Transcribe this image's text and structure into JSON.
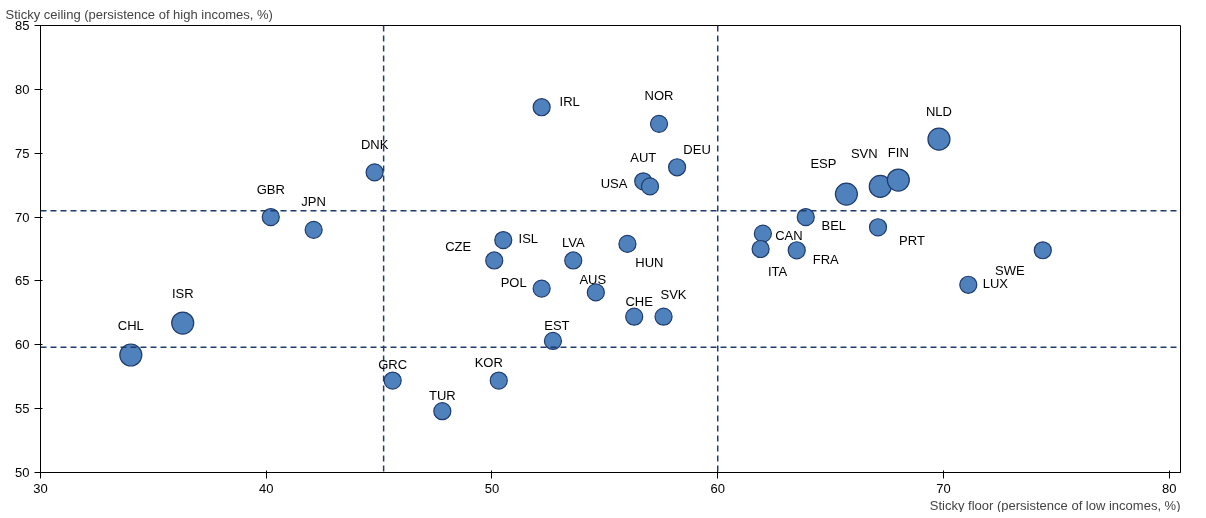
{
  "chart_data": {
    "type": "bubble",
    "xlabel": "Sticky floor (persistence of low incomes, %)",
    "ylabel": "Sticky ceiling (persistence of high incomes, %)",
    "xlim": [
      30,
      80.5
    ],
    "ylim": [
      50,
      85
    ],
    "xticks": [
      30,
      40,
      50,
      60,
      70,
      80
    ],
    "yticks": [
      50,
      55,
      60,
      65,
      70,
      75,
      80,
      85
    ],
    "grid": false,
    "marker": "circle",
    "series": [
      {
        "color": "#4f81bd",
        "x": [
          34.0,
          36.3,
          45.6,
          47.8,
          50.3,
          40.2,
          42.1,
          44.8,
          52.2,
          57.4,
          58.2,
          56.7,
          57.0,
          50.1,
          50.5,
          53.6,
          56.0,
          52.2,
          54.6,
          56.3,
          57.6,
          52.7,
          65.7,
          67.2,
          68.0,
          69.8,
          62.0,
          63.9,
          61.9,
          63.5,
          67.1,
          71.1,
          74.4
        ],
        "values": [
          59.2,
          61.7,
          57.2,
          54.8,
          57.2,
          70.0,
          69.0,
          73.5,
          78.6,
          77.3,
          73.9,
          72.8,
          72.4,
          66.6,
          68.2,
          66.6,
          67.9,
          64.4,
          64.1,
          62.2,
          62.2,
          60.3,
          71.8,
          72.4,
          72.9,
          76.1,
          68.7,
          70.0,
          67.5,
          67.4,
          69.2,
          64.7,
          67.4
        ],
        "sizes": [
          1,
          1,
          0.6,
          0.6,
          0.6,
          0.6,
          0.6,
          0.6,
          0.6,
          0.6,
          0.6,
          0.6,
          0.6,
          0.6,
          0.6,
          0.6,
          0.6,
          0.6,
          0.6,
          0.6,
          0.6,
          0.6,
          1,
          1,
          1,
          1,
          0.6,
          0.6,
          0.6,
          0.6,
          0.6,
          0.6,
          0.6
        ]
      }
    ],
    "annotations": [
      {
        "text": "CHL",
        "x": 34.0,
        "y": 59.2
      },
      {
        "text": "ISR",
        "x": 36.3,
        "y": 61.7
      },
      {
        "text": "GRC",
        "x": 45.6,
        "y": 57.2
      },
      {
        "text": "TUR",
        "x": 47.8,
        "y": 54.8
      },
      {
        "text": "KOR",
        "x": 50.3,
        "y": 57.2
      },
      {
        "text": "GBR",
        "x": 40.2,
        "y": 70.0
      },
      {
        "text": "JPN",
        "x": 42.1,
        "y": 69.0
      },
      {
        "text": "DNK",
        "x": 44.8,
        "y": 73.5
      },
      {
        "text": "IRL",
        "x": 52.2,
        "y": 78.6
      },
      {
        "text": "NOR",
        "x": 57.4,
        "y": 77.3
      },
      {
        "text": "DEU",
        "x": 58.2,
        "y": 73.9
      },
      {
        "text": "AUT",
        "x": 56.7,
        "y": 72.8
      },
      {
        "text": "USA",
        "x": 57.0,
        "y": 72.4
      },
      {
        "text": "CZE",
        "x": 50.1,
        "y": 66.6
      },
      {
        "text": "ISL",
        "x": 50.5,
        "y": 68.2
      },
      {
        "text": "LVA",
        "x": 53.6,
        "y": 66.6
      },
      {
        "text": "HUN",
        "x": 56.0,
        "y": 67.9
      },
      {
        "text": "POL",
        "x": 52.2,
        "y": 64.4
      },
      {
        "text": "AUS",
        "x": 54.6,
        "y": 64.1
      },
      {
        "text": "CHE",
        "x": 56.3,
        "y": 62.2
      },
      {
        "text": "SVK",
        "x": 57.6,
        "y": 62.2
      },
      {
        "text": "EST",
        "x": 52.7,
        "y": 60.3
      },
      {
        "text": "ESP",
        "x": 65.7,
        "y": 71.8
      },
      {
        "text": "SVN",
        "x": 67.2,
        "y": 72.4
      },
      {
        "text": "FIN",
        "x": 68.0,
        "y": 72.9
      },
      {
        "text": "NLD",
        "x": 69.8,
        "y": 76.1
      },
      {
        "text": "CAN",
        "x": 62.0,
        "y": 68.7
      },
      {
        "text": "BEL",
        "x": 63.9,
        "y": 70.0
      },
      {
        "text": "ITA",
        "x": 61.9,
        "y": 67.5
      },
      {
        "text": "FRA",
        "x": 63.5,
        "y": 67.4
      },
      {
        "text": "PRT",
        "x": 67.1,
        "y": 69.2
      },
      {
        "text": "LUX",
        "x": 71.1,
        "y": 64.7
      },
      {
        "text": "SWE",
        "x": 74.4,
        "y": 67.4
      }
    ],
    "ref_lines": [
      {
        "axis": "x",
        "value": 45.2,
        "color": "#1f3c6e",
        "line_style": "dashed"
      },
      {
        "axis": "x",
        "value": 60,
        "color": "#1f3c6e",
        "line_style": "dashed"
      },
      {
        "axis": "y",
        "value": 70.5,
        "color": "#1f3c6e",
        "line_style": "dashed"
      },
      {
        "axis": "y",
        "value": 59.8,
        "color": "#1f3c6e",
        "line_style": "dashed"
      }
    ]
  }
}
